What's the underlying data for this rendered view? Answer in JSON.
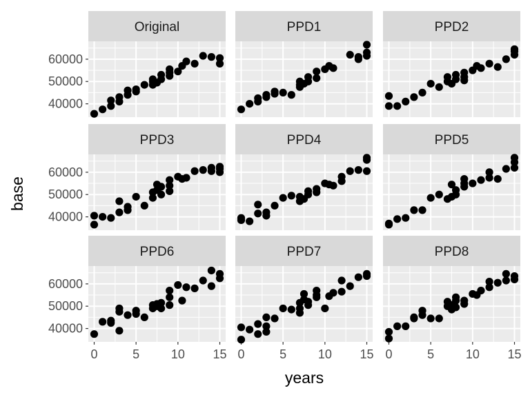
{
  "chart_data": {
    "type": "scatter",
    "layout": "facet_wrap 3x3, shared axes",
    "xlabel": "years",
    "ylabel": "base",
    "xlim": [
      -0.7,
      15.7
    ],
    "ylim": [
      34000,
      68000
    ],
    "x_ticks": [
      0,
      5,
      10,
      15
    ],
    "x_tick_labels": [
      "0",
      "5",
      "10",
      "15"
    ],
    "y_ticks": [
      40000,
      50000,
      60000
    ],
    "y_tick_labels": [
      "40000",
      "50000",
      "60000"
    ],
    "grid": true,
    "legend": "none",
    "colors": {
      "panel_background": "#ebebeb",
      "grid": "#ffffff",
      "strip_background": "#d9d9d9",
      "point": "#000000"
    },
    "panels": [
      {
        "title": "Original",
        "points": [
          [
            0,
            35500
          ],
          [
            1,
            37500
          ],
          [
            2,
            39000
          ],
          [
            2,
            41500
          ],
          [
            3,
            41000
          ],
          [
            3,
            43000
          ],
          [
            4,
            44000
          ],
          [
            4,
            46000
          ],
          [
            5,
            45500
          ],
          [
            5,
            46500
          ],
          [
            6,
            48500
          ],
          [
            7,
            48500
          ],
          [
            7,
            50000
          ],
          [
            7,
            51000
          ],
          [
            7.5,
            49500
          ],
          [
            8,
            51000
          ],
          [
            8,
            53000
          ],
          [
            9,
            52500
          ],
          [
            9,
            54000
          ],
          [
            9,
            55500
          ],
          [
            10,
            54500
          ],
          [
            10.5,
            57000
          ],
          [
            11,
            59000
          ],
          [
            12,
            58000
          ],
          [
            13,
            61500
          ],
          [
            14,
            61000
          ],
          [
            15,
            60500
          ],
          [
            15,
            58000
          ]
        ]
      },
      {
        "title": "PPD1",
        "points": [
          [
            0,
            37500
          ],
          [
            1,
            40000
          ],
          [
            2,
            41000
          ],
          [
            2,
            42500
          ],
          [
            3,
            43000
          ],
          [
            3,
            44000
          ],
          [
            4,
            44500
          ],
          [
            4,
            45500
          ],
          [
            5,
            45000
          ],
          [
            6,
            44000
          ],
          [
            7,
            47500
          ],
          [
            7,
            48500
          ],
          [
            7,
            50000
          ],
          [
            7.5,
            49000
          ],
          [
            8,
            50000
          ],
          [
            8,
            52000
          ],
          [
            9,
            51500
          ],
          [
            9,
            54500
          ],
          [
            10,
            55500
          ],
          [
            10.5,
            57000
          ],
          [
            11,
            56000
          ],
          [
            13,
            62000
          ],
          [
            14,
            61000
          ],
          [
            14,
            60000
          ],
          [
            15,
            63000
          ],
          [
            15,
            61500
          ],
          [
            15,
            66500
          ]
        ]
      },
      {
        "title": "PPD2",
        "points": [
          [
            0,
            39000
          ],
          [
            0,
            43500
          ],
          [
            1,
            39000
          ],
          [
            2,
            41000
          ],
          [
            3,
            43000
          ],
          [
            4,
            45000
          ],
          [
            5,
            49000
          ],
          [
            6,
            47500
          ],
          [
            7,
            50000
          ],
          [
            7,
            52000
          ],
          [
            7.5,
            49000
          ],
          [
            8,
            51000
          ],
          [
            8,
            53000
          ],
          [
            9,
            50500
          ],
          [
            9,
            52000
          ],
          [
            9,
            54000
          ],
          [
            10,
            55000
          ],
          [
            10.5,
            57000
          ],
          [
            11,
            56000
          ],
          [
            12,
            58000
          ],
          [
            13,
            56500
          ],
          [
            14,
            60000
          ],
          [
            15,
            62000
          ],
          [
            15,
            63500
          ],
          [
            15,
            64500
          ]
        ]
      },
      {
        "title": "PPD3",
        "points": [
          [
            0,
            36500
          ],
          [
            0,
            40500
          ],
          [
            1,
            40000
          ],
          [
            2,
            39500
          ],
          [
            3,
            47000
          ],
          [
            3,
            42000
          ],
          [
            4,
            43000
          ],
          [
            4,
            44500
          ],
          [
            5,
            49000
          ],
          [
            6,
            45000
          ],
          [
            7,
            48500
          ],
          [
            7,
            51000
          ],
          [
            7.5,
            52000
          ],
          [
            7.5,
            54500
          ],
          [
            8,
            50000
          ],
          [
            8,
            53500
          ],
          [
            9,
            51500
          ],
          [
            9,
            54000
          ],
          [
            9,
            56500
          ],
          [
            10,
            58000
          ],
          [
            10.5,
            57000
          ],
          [
            11,
            57500
          ],
          [
            12,
            60500
          ],
          [
            13,
            61000
          ],
          [
            14,
            62000
          ],
          [
            14,
            60500
          ],
          [
            15,
            61500
          ],
          [
            15,
            62500
          ],
          [
            15,
            60000
          ]
        ]
      },
      {
        "title": "PPD4",
        "points": [
          [
            0,
            38500
          ],
          [
            0,
            39500
          ],
          [
            1,
            38000
          ],
          [
            2,
            41500
          ],
          [
            2,
            45500
          ],
          [
            3,
            40500
          ],
          [
            3,
            42000
          ],
          [
            4,
            45000
          ],
          [
            5,
            48500
          ],
          [
            6,
            49500
          ],
          [
            7,
            47000
          ],
          [
            7,
            49000
          ],
          [
            7.5,
            48000
          ],
          [
            8,
            50000
          ],
          [
            8,
            51500
          ],
          [
            9,
            51000
          ],
          [
            9,
            52500
          ],
          [
            10,
            55000
          ],
          [
            10.5,
            54500
          ],
          [
            11,
            54000
          ],
          [
            12,
            58000
          ],
          [
            12,
            56000
          ],
          [
            13,
            60500
          ],
          [
            14,
            61000
          ],
          [
            15,
            60500
          ],
          [
            15,
            65500
          ],
          [
            15,
            66500
          ]
        ]
      },
      {
        "title": "PPD5",
        "points": [
          [
            0,
            36500
          ],
          [
            0,
            37000
          ],
          [
            1,
            39000
          ],
          [
            2,
            39500
          ],
          [
            3,
            43000
          ],
          [
            4,
            43000
          ],
          [
            5,
            48500
          ],
          [
            6,
            50000
          ],
          [
            7,
            48000
          ],
          [
            7.5,
            49000
          ],
          [
            7.5,
            54500
          ],
          [
            8,
            52000
          ],
          [
            8,
            50000
          ],
          [
            9,
            53500
          ],
          [
            9,
            55000
          ],
          [
            9,
            57000
          ],
          [
            10,
            55000
          ],
          [
            11,
            56500
          ],
          [
            12,
            60000
          ],
          [
            12,
            57500
          ],
          [
            13,
            57000
          ],
          [
            14,
            61500
          ],
          [
            15,
            62000
          ],
          [
            15,
            64500
          ],
          [
            15,
            66500
          ]
        ]
      },
      {
        "title": "PPD6",
        "points": [
          [
            0,
            37500
          ],
          [
            1,
            43000
          ],
          [
            2,
            42500
          ],
          [
            2,
            43500
          ],
          [
            3,
            39000
          ],
          [
            3,
            47500
          ],
          [
            3,
            49000
          ],
          [
            4,
            46000
          ],
          [
            5,
            48000
          ],
          [
            5,
            46500
          ],
          [
            6,
            45000
          ],
          [
            7,
            49000
          ],
          [
            7,
            50500
          ],
          [
            7.5,
            50000
          ],
          [
            7.5,
            51000
          ],
          [
            8,
            49000
          ],
          [
            8,
            51500
          ],
          [
            9,
            50500
          ],
          [
            9,
            54000
          ],
          [
            9,
            57000
          ],
          [
            10,
            59500
          ],
          [
            10.5,
            52500
          ],
          [
            11,
            58500
          ],
          [
            12,
            58000
          ],
          [
            13,
            61500
          ],
          [
            14,
            59000
          ],
          [
            14,
            66000
          ],
          [
            15,
            64500
          ],
          [
            15,
            62500
          ]
        ]
      },
      {
        "title": "PPD7",
        "points": [
          [
            0,
            35000
          ],
          [
            0,
            40500
          ],
          [
            1,
            39500
          ],
          [
            2,
            37500
          ],
          [
            2,
            42000
          ],
          [
            3,
            38500
          ],
          [
            3,
            41000
          ],
          [
            3,
            45000
          ],
          [
            4,
            44500
          ],
          [
            5,
            49000
          ],
          [
            6,
            48500
          ],
          [
            7,
            47000
          ],
          [
            7,
            49000
          ],
          [
            7,
            51500
          ],
          [
            7.5,
            53000
          ],
          [
            7.5,
            55500
          ],
          [
            8,
            50500
          ],
          [
            8,
            52000
          ],
          [
            9,
            54000
          ],
          [
            9,
            57000
          ],
          [
            9,
            55000
          ],
          [
            10,
            49000
          ],
          [
            10.5,
            54500
          ],
          [
            11,
            56000
          ],
          [
            12,
            56500
          ],
          [
            12,
            61500
          ],
          [
            13,
            59000
          ],
          [
            14,
            63000
          ],
          [
            15,
            63500
          ],
          [
            15,
            64500
          ]
        ]
      },
      {
        "title": "PPD8",
        "points": [
          [
            0,
            35500
          ],
          [
            0,
            38500
          ],
          [
            1,
            41000
          ],
          [
            2,
            41000
          ],
          [
            3,
            45000
          ],
          [
            3,
            44500
          ],
          [
            4,
            46000
          ],
          [
            4,
            48000
          ],
          [
            5,
            44500
          ],
          [
            6,
            44500
          ],
          [
            7,
            50000
          ],
          [
            7,
            52000
          ],
          [
            7.5,
            48500
          ],
          [
            7.5,
            50500
          ],
          [
            8,
            52500
          ],
          [
            8,
            54000
          ],
          [
            8,
            49500
          ],
          [
            9,
            51000
          ],
          [
            9,
            52500
          ],
          [
            10,
            55500
          ],
          [
            10.5,
            55000
          ],
          [
            11,
            57000
          ],
          [
            12,
            58500
          ],
          [
            12,
            61000
          ],
          [
            13,
            60500
          ],
          [
            14,
            61500
          ],
          [
            14,
            64500
          ],
          [
            15,
            62000
          ],
          [
            15,
            63500
          ]
        ]
      }
    ]
  }
}
